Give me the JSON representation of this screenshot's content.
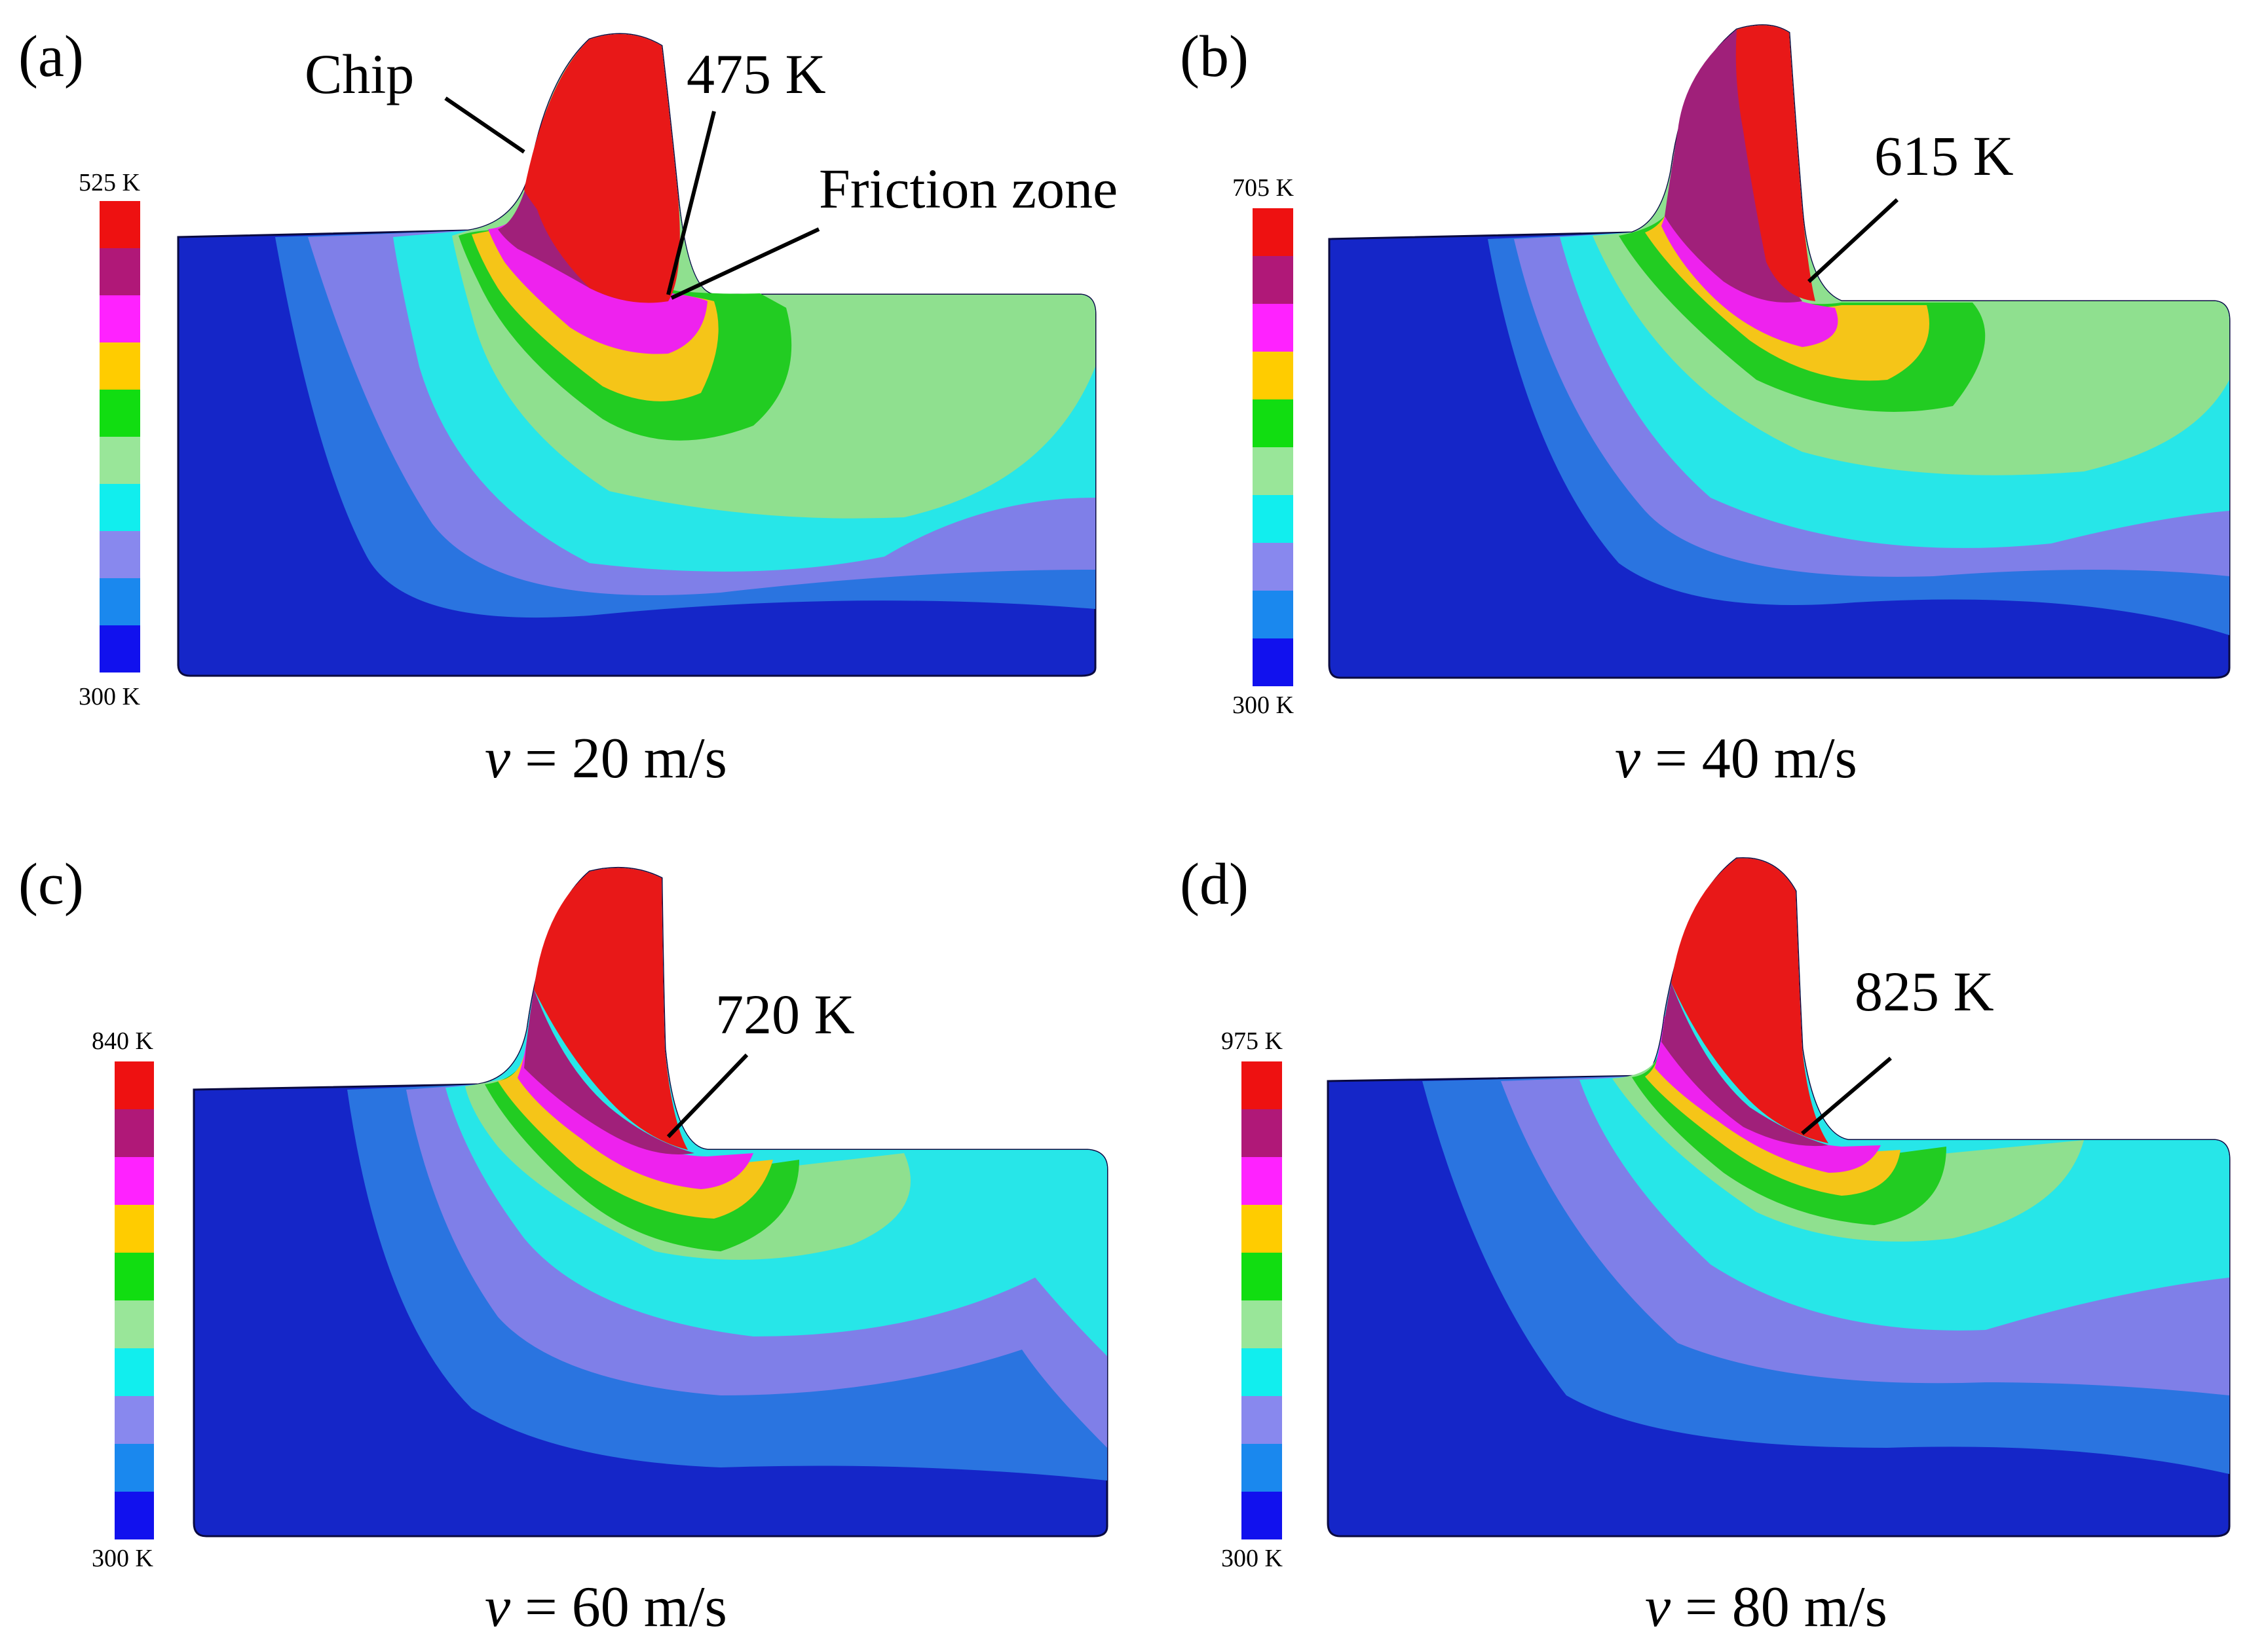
{
  "figure": {
    "panels": [
      {
        "id": "a",
        "label": "(a)",
        "colorbar": {
          "max_label": "525 K",
          "min_label": "300 K"
        },
        "annotations": {
          "peak_temp": "475 K",
          "chip": "Chip",
          "friction": "Friction zone"
        },
        "caption": {
          "var": "v",
          "rest": " = 20 m/s"
        }
      },
      {
        "id": "b",
        "label": "(b)",
        "colorbar": {
          "max_label": "705 K",
          "min_label": "300 K"
        },
        "annotations": {
          "peak_temp": "615 K"
        },
        "caption": {
          "var": "v",
          "rest": " = 40 m/s"
        }
      },
      {
        "id": "c",
        "label": "(c)",
        "colorbar": {
          "max_label": "840 K",
          "min_label": "300 K"
        },
        "annotations": {
          "peak_temp": "720 K"
        },
        "caption": {
          "var": "v",
          "rest": " = 60 m/s"
        }
      },
      {
        "id": "d",
        "label": "(d)",
        "colorbar": {
          "max_label": "975 K",
          "min_label": "300 K"
        },
        "annotations": {
          "peak_temp": "825 K"
        },
        "caption": {
          "var": "v",
          "rest": " = 80 m/s"
        }
      }
    ],
    "colorbar_colors_top_to_bottom": [
      "#ee1111",
      "#b01878",
      "#ff22ff",
      "#ffcc00",
      "#11dd11",
      "#99e699",
      "#11eeee",
      "#8888ee",
      "#1a88ee",
      "#1111ee"
    ],
    "zone_colors": {
      "deep": "#1526c8",
      "blue": "#2a74e0",
      "violet": "#7f7fe8",
      "cyan": "#27e6e8",
      "lightgreen": "#8fe08f",
      "green": "#22cc22",
      "yellow": "#f5c518",
      "magenta": "#ee22ee",
      "purple": "#a0207a",
      "red": "#e81818"
    }
  }
}
